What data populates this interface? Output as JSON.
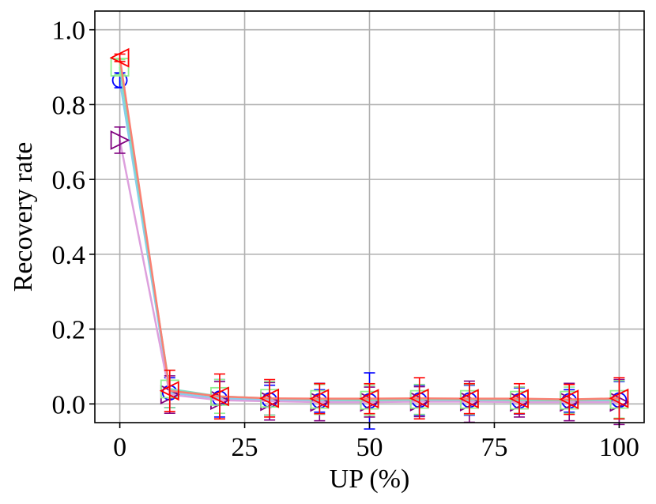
{
  "chart_data": {
    "type": "line",
    "title": "",
    "xlabel": "UP (%)",
    "ylabel": "Recovery rate",
    "xlim": [
      -5,
      105
    ],
    "ylim": [
      -0.05,
      1.05
    ],
    "xticks": [
      0,
      25,
      50,
      75,
      100
    ],
    "xtick_labels": [
      "0",
      "25",
      "50",
      "75",
      "100"
    ],
    "yticks": [
      0.0,
      0.2,
      0.4,
      0.6,
      0.8,
      1.0
    ],
    "ytick_labels": [
      "0.0",
      "0.2",
      "0.4",
      "0.6",
      "0.8",
      "1.0"
    ],
    "grid": true,
    "x": [
      0,
      10,
      20,
      30,
      40,
      50,
      60,
      70,
      80,
      90,
      100
    ],
    "series": [
      {
        "marker": "circle",
        "color": "#0000ff",
        "line_color": "#87ceeb",
        "values": [
          0.865,
          0.03,
          0.015,
          0.01,
          0.008,
          0.008,
          0.01,
          0.01,
          0.008,
          0.008,
          0.01
        ],
        "err": [
          0.02,
          0.04,
          0.05,
          0.04,
          0.03,
          0.075,
          0.04,
          0.04,
          0.035,
          0.03,
          0.05
        ]
      },
      {
        "marker": "triangle-right",
        "color": "#800080",
        "line_color": "#dda0dd",
        "values": [
          0.705,
          0.025,
          0.01,
          0.007,
          0.005,
          0.005,
          0.006,
          0.006,
          0.005,
          0.005,
          0.005
        ],
        "err": [
          0.035,
          0.05,
          0.05,
          0.05,
          0.05,
          0.04,
          0.04,
          0.055,
          0.04,
          0.05,
          0.06
        ]
      },
      {
        "marker": "square",
        "color": "#90ee90",
        "line_color": "#7fdcc0",
        "values": [
          0.9,
          0.04,
          0.02,
          0.015,
          0.012,
          0.01,
          0.012,
          0.012,
          0.01,
          0.01,
          0.012
        ],
        "err": [
          0.02,
          0.05,
          0.045,
          0.045,
          0.04,
          0.04,
          0.04,
          0.04,
          0.035,
          0.035,
          0.05
        ]
      },
      {
        "marker": "triangle-left",
        "color": "#ff0000",
        "line_color": "#fa8072",
        "values": [
          0.925,
          0.035,
          0.02,
          0.015,
          0.014,
          0.014,
          0.015,
          0.014,
          0.014,
          0.012,
          0.015
        ],
        "err": [
          0.01,
          0.055,
          0.06,
          0.05,
          0.04,
          0.04,
          0.055,
          0.04,
          0.04,
          0.04,
          0.055
        ]
      }
    ]
  }
}
